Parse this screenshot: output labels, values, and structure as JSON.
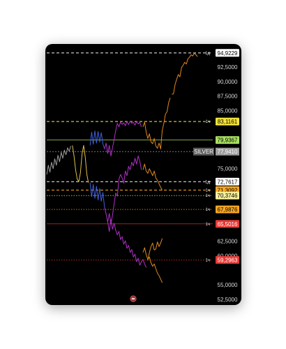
{
  "chart_data": {
    "type": "line",
    "instrument": "SILVER",
    "price_axis": {
      "ylim": [
        52.5,
        95.5
      ],
      "ticks": [
        "92,5000",
        "90,0000",
        "87,5000",
        "85,0000",
        "75,0000",
        "62,5000",
        "60,0000",
        "55,0000",
        "52,5000"
      ],
      "tick_values": [
        92.5,
        90.0,
        87.5,
        85.0,
        75.0,
        62.5,
        60.0,
        55.0,
        52.5
      ]
    },
    "current_price": {
      "label": "SILVER",
      "value_text": "77,9410",
      "value": 77.941,
      "color": "#9e9e9e"
    },
    "levels": [
      {
        "value": 94.9229,
        "text": "94,9229",
        "tf": "1д",
        "color": "#ffffff",
        "text_color": "#000000",
        "style": "dashed"
      },
      {
        "value": 83.1161,
        "text": "83,1161",
        "tf": "1ч",
        "color": "#f2e33c",
        "text_color": "#000000",
        "style": "dashed"
      },
      {
        "value": 79.9367,
        "text": "79,9367",
        "tf": "",
        "color": "#a8e05f",
        "text_color": "#000000",
        "style": "solid"
      },
      {
        "value": 72.7617,
        "text": "72,7617",
        "tf": "1д",
        "color": "#ffffff",
        "text_color": "#000000",
        "style": "dashed"
      },
      {
        "value": 71.3092,
        "text": "71,3092",
        "tf": "1ч",
        "color": "#f5a623",
        "text_color": "#000000",
        "style": "dashed"
      },
      {
        "value": 70.3746,
        "text": "70,3746",
        "tf": "1ч",
        "color": "#f6ee9a",
        "text_color": "#000000",
        "style": "dotted"
      },
      {
        "value": 67.9876,
        "text": "67,9876",
        "tf": "1ч",
        "color": "#f5a623",
        "text_color": "#000000",
        "style": "dotted"
      },
      {
        "value": 65.5016,
        "text": "65,5016",
        "tf": "1ч",
        "color": "#e53935",
        "text_color": "#ffffff",
        "style": "solid"
      },
      {
        "value": 59.2963,
        "text": "59,2963",
        "tf": "1ч",
        "color": "#e53935",
        "text_color": "#ffffff",
        "style": "dotted"
      }
    ],
    "series": [
      {
        "color": "#9e9e9e",
        "x": [
          0,
          1,
          2,
          3,
          4,
          5,
          6,
          7,
          8,
          9,
          10,
          11,
          12,
          13,
          14,
          15
        ],
        "y": [
          74.0,
          75.6,
          74.4,
          76.1,
          75.0,
          76.7,
          75.6,
          77.3,
          76.2,
          77.8,
          76.8,
          78.2,
          77.4,
          78.6,
          78.0,
          78.9
        ]
      },
      {
        "color": "#e0c04a",
        "x": [
          16,
          17,
          18,
          19,
          20,
          21,
          22,
          23,
          24,
          25,
          26
        ],
        "y": [
          79.0,
          77.2,
          74.8,
          73.2,
          72.8,
          74.3,
          77.5,
          79.0,
          77.0,
          74.0,
          72.6
        ]
      },
      {
        "color": "#3d5fd9",
        "x": [
          27,
          28,
          29,
          30,
          31,
          32,
          33,
          34,
          35,
          36
        ],
        "y": [
          79.0,
          81.3,
          79.2,
          81.5,
          79.4,
          81.4,
          79.6,
          81.2,
          79.3,
          78.4
        ]
      },
      {
        "color": "#3d5fd9",
        "x": [
          27,
          28,
          29,
          30,
          31,
          32,
          33,
          34,
          35,
          36
        ],
        "y": [
          72.6,
          70.2,
          72.3,
          69.9,
          72.0,
          69.6,
          71.6,
          69.4,
          70.9,
          68.4
        ]
      },
      {
        "color": "#b030c8",
        "x": [
          36,
          37,
          38,
          39,
          40,
          41,
          42,
          43,
          44,
          45,
          46,
          47,
          48,
          49,
          50,
          51,
          52,
          53,
          54,
          55,
          56,
          57,
          58,
          59
        ],
        "y": [
          78.4,
          79.4,
          77.6,
          79.0,
          77.2,
          78.6,
          80.0,
          81.6,
          82.8,
          82.2,
          83.0,
          82.6,
          82.9,
          82.4,
          83.1,
          82.6,
          83.2,
          82.8,
          83.0,
          82.5,
          83.1,
          82.7,
          83.0,
          82.2
        ]
      },
      {
        "color": "#b030c8",
        "x": [
          36,
          37,
          38,
          39,
          40,
          41,
          42,
          43,
          44,
          45,
          46,
          47,
          48,
          49,
          50,
          51,
          52,
          53,
          54,
          55,
          56,
          57,
          58,
          59
        ],
        "y": [
          68.4,
          67.2,
          65.8,
          67.3,
          65.6,
          67.0,
          69.0,
          70.8,
          70.3,
          73.2,
          74.0,
          73.4,
          72.5,
          74.6,
          73.8,
          75.4,
          74.8,
          76.1,
          75.5,
          76.8,
          75.8,
          77.2,
          76.3,
          74.8
        ]
      },
      {
        "color": "#b030c8",
        "x": [
          38,
          39,
          40,
          41,
          42,
          43,
          44,
          45,
          46,
          47,
          48,
          49,
          50,
          51,
          52,
          53,
          54,
          55,
          56,
          57,
          58,
          59,
          60,
          61,
          62
        ],
        "y": [
          65.8,
          64.2,
          66.2,
          64.6,
          65.6,
          64.4,
          63.6,
          64.2,
          62.8,
          63.3,
          62.0,
          62.6,
          61.3,
          61.8,
          60.6,
          61.1,
          59.8,
          60.3,
          59.0,
          59.6,
          58.4,
          59.0,
          59.4,
          58.6,
          58.0
        ]
      },
      {
        "color": "#e08a1e",
        "x": [
          60,
          61,
          62,
          63,
          64,
          65,
          66,
          67,
          68,
          69,
          70,
          71,
          72,
          73,
          74,
          75,
          76,
          77
        ],
        "y": [
          82.2,
          83.0,
          81.3,
          80.2,
          81.0,
          79.6,
          79.3,
          80.2,
          78.9,
          78.5,
          79.4,
          78.4,
          81.6,
          82.8,
          84.4,
          84.8,
          86.4,
          87.2
        ]
      },
      {
        "color": "#e08a1e",
        "x": [
          78,
          79,
          80,
          81,
          82,
          83,
          84,
          85,
          86,
          87,
          88,
          89,
          90,
          91,
          92,
          93,
          94
        ],
        "y": [
          87.8,
          87.9,
          89.5,
          90.4,
          91.2,
          90.8,
          92.4,
          92.8,
          93.3,
          93.0,
          93.9,
          94.2,
          94.6,
          94.4,
          94.9,
          94.6,
          94.3
        ]
      },
      {
        "color": "#e08a1e",
        "x": [
          60,
          61,
          62,
          63,
          64,
          65,
          66,
          67,
          68,
          69,
          70,
          71,
          72
        ],
        "y": [
          74.8,
          75.8,
          74.6,
          74.2,
          75.0,
          74.4,
          73.8,
          74.6,
          73.4,
          73.0,
          72.4,
          71.8,
          71.3
        ]
      },
      {
        "color": "#e08a1e",
        "x": [
          60,
          61,
          62,
          63,
          64,
          65,
          66,
          67,
          68,
          69,
          70,
          71,
          72
        ],
        "y": [
          60.6,
          61.4,
          60.2,
          59.4,
          59.8,
          58.8,
          58.2,
          58.6,
          57.8,
          57.0,
          56.6,
          56.0,
          55.4
        ]
      },
      {
        "color": "#e08a1e",
        "x": [
          63,
          64,
          65,
          66,
          67,
          68,
          69,
          70,
          71,
          72
        ],
        "y": [
          59.2,
          60.6,
          61.6,
          62.2,
          61.0,
          61.2,
          62.4,
          61.6,
          62.2,
          63.0
        ]
      }
    ],
    "xlim": [
      0,
      100
    ],
    "watermark_icon": "chart-badge-icon"
  }
}
